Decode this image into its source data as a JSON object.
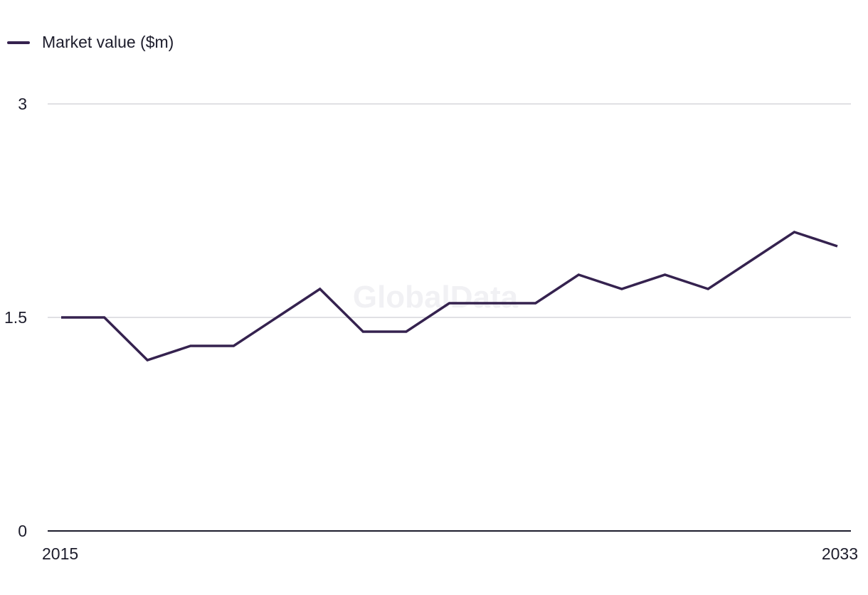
{
  "legend": {
    "label": "Market value ($m)"
  },
  "watermark": "GlobalData",
  "colors": {
    "series": "#35224f",
    "grid": "#d6d6dc",
    "axis": "#1d1d2c"
  },
  "chart_data": {
    "type": "line",
    "title": "",
    "xlabel": "",
    "ylabel": "",
    "x": [
      2015,
      2016,
      2017,
      2018,
      2019,
      2020,
      2021,
      2022,
      2023,
      2024,
      2025,
      2026,
      2027,
      2028,
      2029,
      2030,
      2031,
      2032,
      2033
    ],
    "series": [
      {
        "name": "Market value ($m)",
        "values": [
          1.5,
          1.5,
          1.2,
          1.3,
          1.3,
          1.5,
          1.7,
          1.4,
          1.4,
          1.6,
          1.6,
          1.6,
          1.8,
          1.7,
          1.8,
          1.7,
          1.9,
          2.1,
          2.0
        ]
      }
    ],
    "ylim": [
      0,
      3
    ],
    "y_ticks": [
      "0",
      "1.5",
      "3"
    ],
    "x_tick_labels": [
      "2015",
      "2033"
    ],
    "grid": true,
    "legend_position": "top-left"
  }
}
